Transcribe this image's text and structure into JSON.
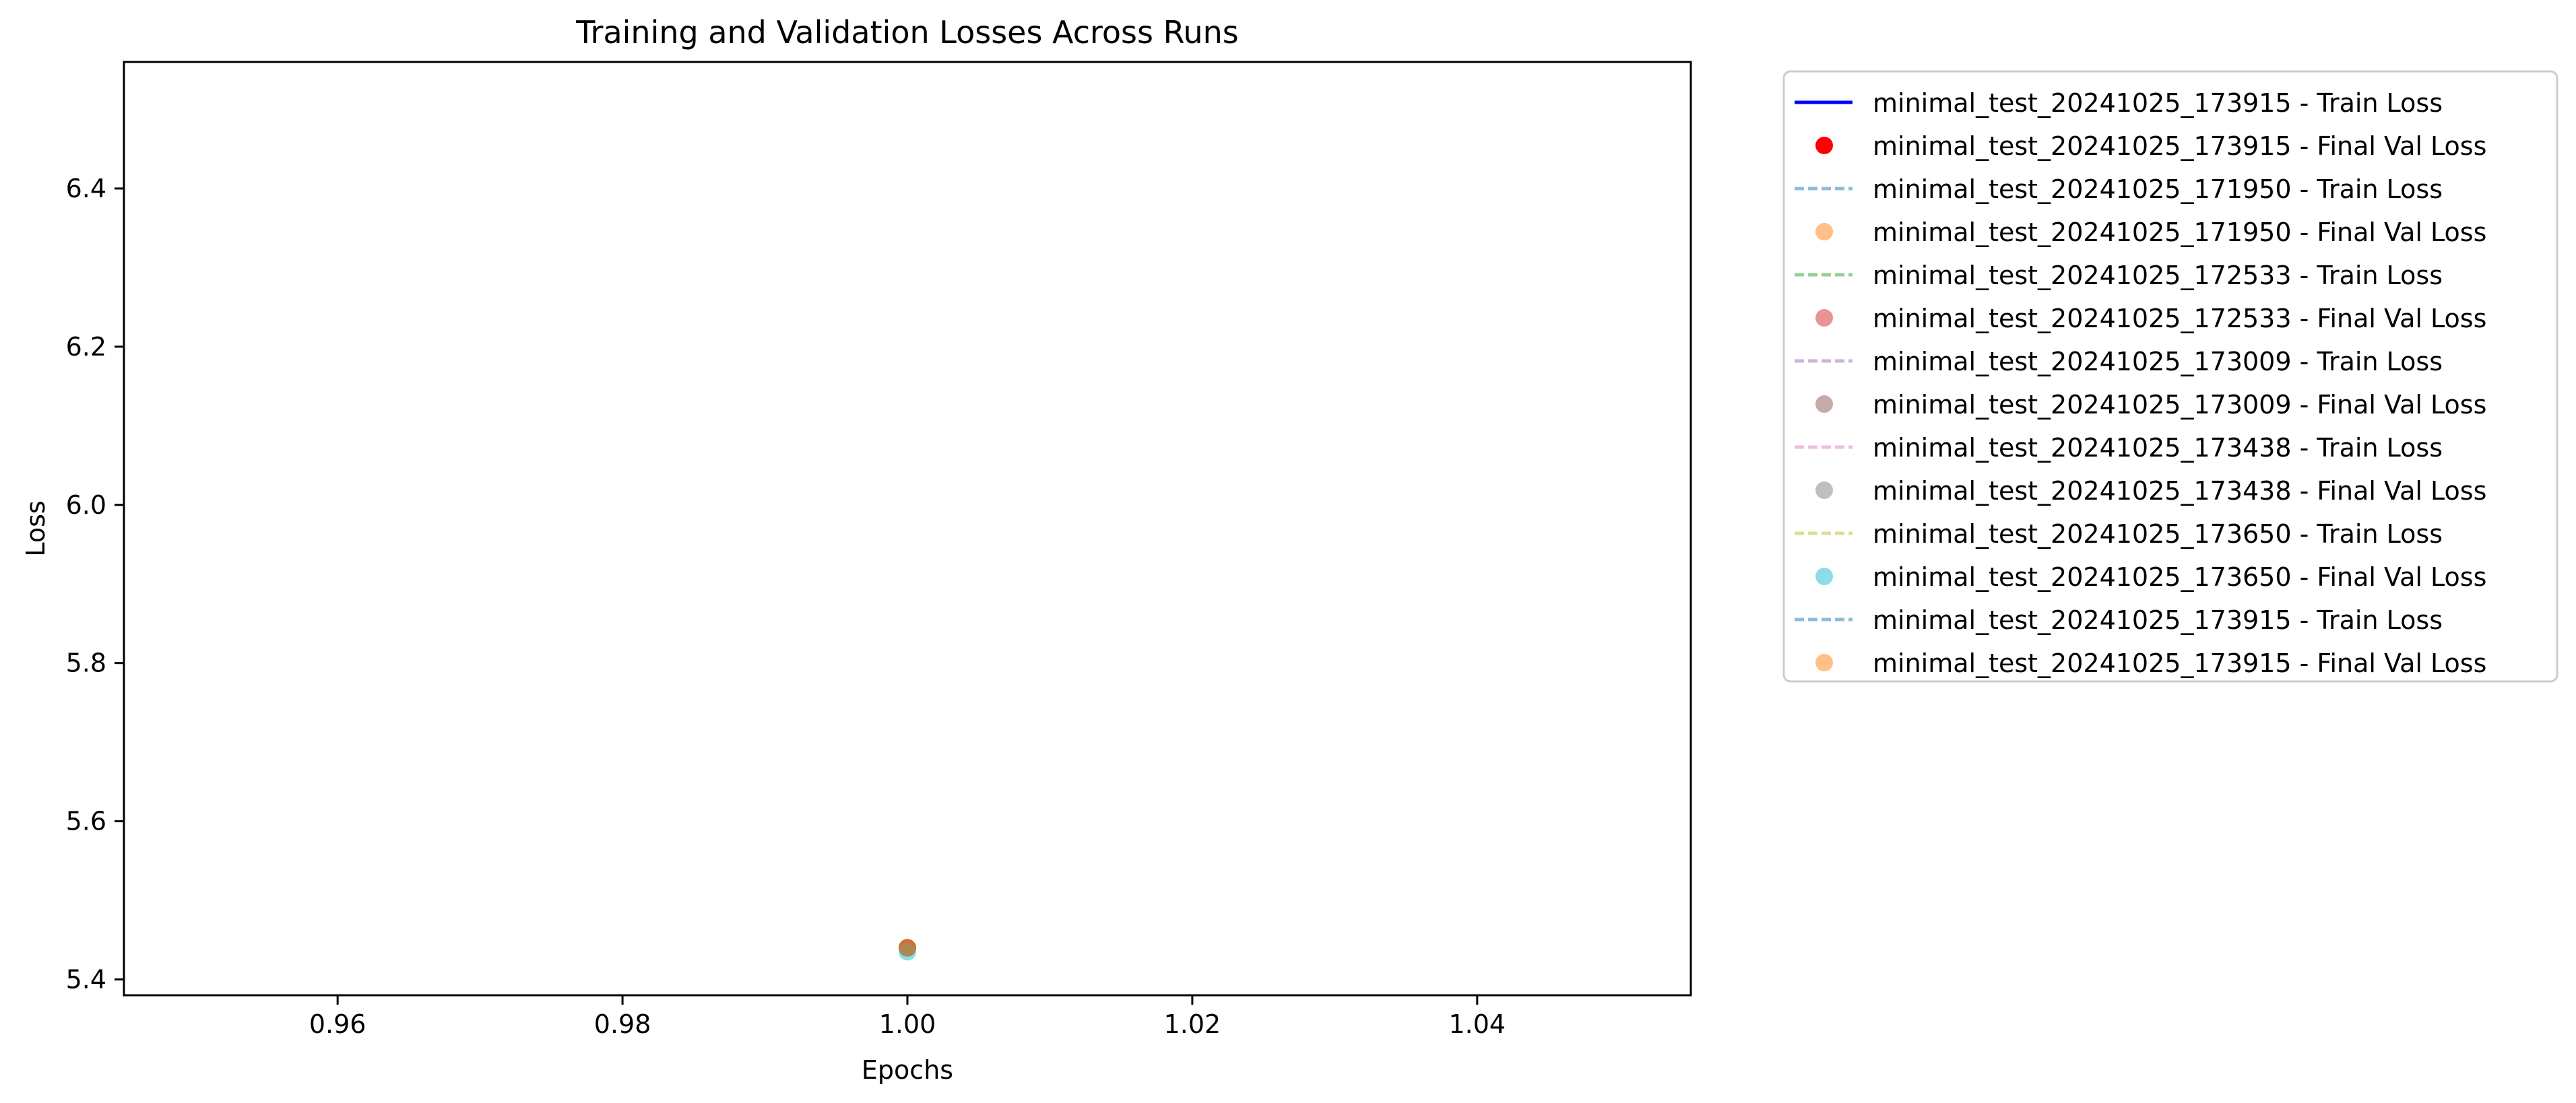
{
  "chart_data": {
    "type": "line",
    "title": "Training and Validation Losses Across Runs",
    "xlabel": "Epochs",
    "ylabel": "Loss",
    "xlim": [
      0.945,
      1.055
    ],
    "ylim": [
      5.38,
      6.56
    ],
    "xticks": [
      0.96,
      0.98,
      1.0,
      1.02,
      1.04
    ],
    "xtick_labels": [
      "0.96",
      "0.98",
      "1.00",
      "1.02",
      "1.04"
    ],
    "yticks": [
      5.4,
      5.6,
      5.8,
      6.0,
      6.2,
      6.4
    ],
    "ytick_labels": [
      "5.4",
      "5.6",
      "5.8",
      "6.0",
      "6.2",
      "6.4"
    ],
    "grid": false,
    "legend_position": "outside-upper-right",
    "series": [
      {
        "name": "minimal_test_20241025_173915 - Train Loss",
        "kind": "line",
        "style": "solid",
        "color": "#0000ff",
        "opacity": 1.0,
        "x": [
          1.0
        ],
        "y": [
          5.44
        ]
      },
      {
        "name": "minimal_test_20241025_173915 - Final Val Loss",
        "kind": "marker",
        "color": "#ff0000",
        "opacity": 1.0,
        "x": [
          1.0
        ],
        "y": [
          5.44
        ]
      },
      {
        "name": "minimal_test_20241025_171950 - Train Loss",
        "kind": "line",
        "style": "dashed",
        "color": "#1f77b4",
        "opacity": 0.5,
        "x": [
          1.0
        ],
        "y": [
          5.44
        ]
      },
      {
        "name": "minimal_test_20241025_171950 - Final Val Loss",
        "kind": "marker",
        "color": "#ff7f0e",
        "opacity": 0.5,
        "x": [
          1.0
        ],
        "y": [
          5.44
        ]
      },
      {
        "name": "minimal_test_20241025_172533 - Train Loss",
        "kind": "line",
        "style": "dashed",
        "color": "#2ca02c",
        "opacity": 0.5,
        "x": [
          1.0
        ],
        "y": [
          5.44
        ]
      },
      {
        "name": "minimal_test_20241025_172533 - Final Val Loss",
        "kind": "marker",
        "color": "#d62728",
        "opacity": 0.5,
        "x": [
          1.0
        ],
        "y": [
          5.44
        ]
      },
      {
        "name": "minimal_test_20241025_173009 - Train Loss",
        "kind": "line",
        "style": "dashed",
        "color": "#9467bd",
        "opacity": 0.5,
        "x": [
          1.0
        ],
        "y": [
          5.44
        ]
      },
      {
        "name": "minimal_test_20241025_173009 - Final Val Loss",
        "kind": "marker",
        "color": "#8c564b",
        "opacity": 0.5,
        "x": [
          1.0
        ],
        "y": [
          5.44
        ]
      },
      {
        "name": "minimal_test_20241025_173438 - Train Loss",
        "kind": "line",
        "style": "dashed",
        "color": "#e377c2",
        "opacity": 0.5,
        "x": [
          1.0
        ],
        "y": [
          5.44
        ]
      },
      {
        "name": "minimal_test_20241025_173438 - Final Val Loss",
        "kind": "marker",
        "color": "#7f7f7f",
        "opacity": 0.5,
        "x": [
          1.0
        ],
        "y": [
          5.44
        ]
      },
      {
        "name": "minimal_test_20241025_173650 - Train Loss",
        "kind": "line",
        "style": "dashed",
        "color": "#bcbd22",
        "opacity": 0.5,
        "x": [
          1.0
        ],
        "y": [
          5.435
        ]
      },
      {
        "name": "minimal_test_20241025_173650 - Final Val Loss",
        "kind": "marker",
        "color": "#17becf",
        "opacity": 0.5,
        "x": [
          1.0
        ],
        "y": [
          5.435
        ]
      },
      {
        "name": "minimal_test_20241025_173915 - Train Loss",
        "kind": "line",
        "style": "dashed",
        "color": "#1f77b4",
        "opacity": 0.5,
        "x": [
          1.0
        ],
        "y": [
          5.44
        ]
      },
      {
        "name": "minimal_test_20241025_173915 - Final Val Loss",
        "kind": "marker",
        "color": "#ff7f0e",
        "opacity": 0.5,
        "x": [
          1.0
        ],
        "y": [
          5.44
        ]
      }
    ]
  }
}
